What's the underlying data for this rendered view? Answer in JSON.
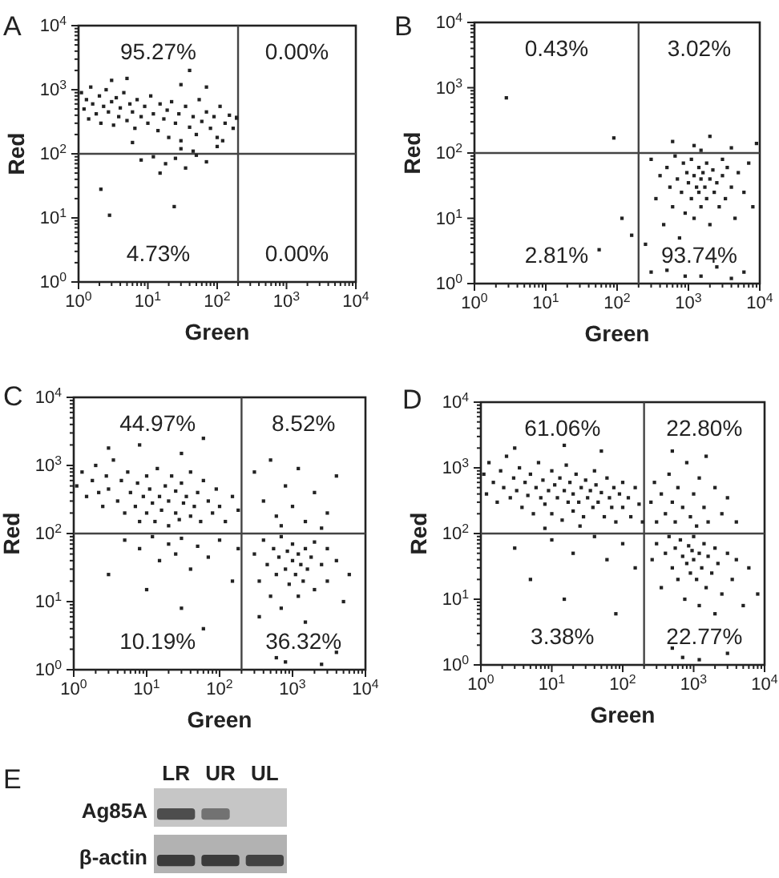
{
  "chart_data": [
    {
      "type": "scatter",
      "title": "A",
      "xlabel": "Green",
      "ylabel": "Red",
      "log": "xy",
      "xlim": [
        1,
        10000
      ],
      "ylim": [
        1,
        10000
      ],
      "color": "#222222",
      "marker": "square",
      "xticks": [
        {
          "value": 1,
          "label": "10$^{0}$"
        },
        {
          "value": 2,
          "label": null
        },
        {
          "value": 3,
          "label": null
        },
        {
          "value": 4,
          "label": null
        },
        {
          "value": 5,
          "label": null
        },
        {
          "value": 6,
          "label": null
        },
        {
          "value": 7,
          "label": null
        },
        {
          "value": 8,
          "label": null
        },
        {
          "value": 9,
          "label": null
        },
        {
          "value": 10,
          "label": "10$^{1}$"
        },
        {
          "value": 20,
          "label": null
        },
        {
          "value": 30,
          "label": null
        },
        {
          "value": 40,
          "label": null
        },
        {
          "value": 50,
          "label": null
        },
        {
          "value": 60,
          "label": null
        },
        {
          "value": 70,
          "label": null
        },
        {
          "value": 80,
          "label": null
        },
        {
          "value": 90,
          "label": null
        },
        {
          "value": 100,
          "label": "10$^{2}$"
        },
        {
          "value": 200,
          "label": null
        },
        {
          "value": 300,
          "label": null
        },
        {
          "value": 400,
          "label": null
        },
        {
          "value": 500,
          "label": null
        },
        {
          "value": 600,
          "label": null
        },
        {
          "value": 700,
          "label": null
        },
        {
          "value": 800,
          "label": null
        },
        {
          "value": 900,
          "label": null
        },
        {
          "value": 1000,
          "label": "10$^{3}$"
        },
        {
          "value": 2000,
          "label": null
        },
        {
          "value": 3000,
          "label": null
        },
        {
          "value": 4000,
          "label": null
        },
        {
          "value": 5000,
          "label": null
        },
        {
          "value": 6000,
          "label": null
        },
        {
          "value": 7000,
          "label": null
        },
        {
          "value": 8000,
          "label": null
        },
        {
          "value": 9000,
          "label": null
        },
        {
          "value": 10000,
          "label": "10$^{4}$"
        }
      ],
      "yticks": [
        {
          "value": 1,
          "label": "10$^{0}$"
        },
        {
          "value": 2,
          "label": null
        },
        {
          "value": 3,
          "label": null
        },
        {
          "value": 4,
          "label": null
        },
        {
          "value": 5,
          "label": null
        },
        {
          "value": 6,
          "label": null
        },
        {
          "value": 7,
          "label": null
        },
        {
          "value": 8,
          "label": null
        },
        {
          "value": 9,
          "label": null
        },
        {
          "value": 10,
          "label": "10$^{1}$"
        },
        {
          "value": 20,
          "label": null
        },
        {
          "value": 30,
          "label": null
        },
        {
          "value": 40,
          "label": null
        },
        {
          "value": 50,
          "label": null
        },
        {
          "value": 60,
          "label": null
        },
        {
          "value": 70,
          "label": null
        },
        {
          "value": 80,
          "label": null
        },
        {
          "value": 90,
          "label": null
        },
        {
          "value": 100,
          "label": "10$^{2}$"
        },
        {
          "value": 200,
          "label": null
        },
        {
          "value": 300,
          "label": null
        },
        {
          "value": 400,
          "label": null
        },
        {
          "value": 500,
          "label": null
        },
        {
          "value": 600,
          "label": null
        },
        {
          "value": 700,
          "label": null
        },
        {
          "value": 800,
          "label": null
        },
        {
          "value": 900,
          "label": null
        },
        {
          "value": 1000,
          "label": "10$^{3}$"
        },
        {
          "value": 2000,
          "label": null
        },
        {
          "value": 3000,
          "label": null
        },
        {
          "value": 4000,
          "label": null
        },
        {
          "value": 5000,
          "label": null
        },
        {
          "value": 6000,
          "label": null
        },
        {
          "value": 7000,
          "label": null
        },
        {
          "value": 8000,
          "label": null
        },
        {
          "value": 9000,
          "label": null
        },
        {
          "value": 10000,
          "label": "10$^{4}$"
        }
      ],
      "ref_lines": [
        {
          "axis": "x",
          "value": 200,
          "color": "#444444"
        },
        {
          "axis": "y",
          "value": 100,
          "color": "#444444"
        }
      ],
      "annotations": [
        "95.27%",
        "0.00%",
        "4.73%",
        "0.00%"
      ],
      "x": [
        1.1,
        1.2,
        1.3,
        1.4,
        1.5,
        1.6,
        1.8,
        2,
        2.1,
        2.3,
        2.5,
        2.7,
        3,
        3.2,
        3.5,
        3.8,
        4,
        4.5,
        5,
        5.5,
        6,
        6.5,
        7,
        8,
        9,
        10,
        11,
        12,
        14,
        15,
        17,
        19,
        20,
        22,
        25,
        28,
        30,
        35,
        40,
        45,
        50,
        55,
        60,
        70,
        80,
        90,
        100,
        110,
        130,
        150,
        170,
        190,
        8,
        12,
        18,
        25,
        35,
        50,
        70,
        15,
        6,
        30,
        45,
        100,
        120,
        5,
        30,
        70,
        3,
        40,
        2.8,
        24,
        2.1,
        190
      ],
      "values": [
        900,
        500,
        700,
        350,
        1100,
        600,
        420,
        800,
        300,
        550,
        1000,
        450,
        650,
        280,
        750,
        380,
        520,
        900,
        330,
        600,
        450,
        250,
        700,
        380,
        550,
        300,
        800,
        420,
        230,
        600,
        350,
        480,
        180,
        650,
        300,
        420,
        160,
        550,
        260,
        380,
        200,
        700,
        320,
        450,
        250,
        380,
        180,
        550,
        300,
        400,
        250,
        360,
        80,
        90,
        70,
        85,
        60,
        95,
        75,
        50,
        150,
        120,
        110,
        130,
        160,
        1500,
        1200,
        1100,
        1400,
        2000,
        11,
        15,
        28,
        370
      ]
    },
    {
      "type": "scatter",
      "title": "B",
      "xlabel": "Green",
      "ylabel": "Red",
      "log": "xy",
      "xlim": [
        1,
        10000
      ],
      "ylim": [
        1,
        10000
      ],
      "color": "#222222",
      "marker": "square",
      "xticks": [
        {
          "value": 1,
          "label": "10$^{0}$"
        },
        {
          "value": 2,
          "label": null
        },
        {
          "value": 3,
          "label": null
        },
        {
          "value": 4,
          "label": null
        },
        {
          "value": 5,
          "label": null
        },
        {
          "value": 6,
          "label": null
        },
        {
          "value": 7,
          "label": null
        },
        {
          "value": 8,
          "label": null
        },
        {
          "value": 9,
          "label": null
        },
        {
          "value": 10,
          "label": "10$^{1}$"
        },
        {
          "value": 20,
          "label": null
        },
        {
          "value": 30,
          "label": null
        },
        {
          "value": 40,
          "label": null
        },
        {
          "value": 50,
          "label": null
        },
        {
          "value": 60,
          "label": null
        },
        {
          "value": 70,
          "label": null
        },
        {
          "value": 80,
          "label": null
        },
        {
          "value": 90,
          "label": null
        },
        {
          "value": 100,
          "label": "10$^{2}$"
        },
        {
          "value": 200,
          "label": null
        },
        {
          "value": 300,
          "label": null
        },
        {
          "value": 400,
          "label": null
        },
        {
          "value": 500,
          "label": null
        },
        {
          "value": 600,
          "label": null
        },
        {
          "value": 700,
          "label": null
        },
        {
          "value": 800,
          "label": null
        },
        {
          "value": 900,
          "label": null
        },
        {
          "value": 1000,
          "label": "10$^{3}$"
        },
        {
          "value": 2000,
          "label": null
        },
        {
          "value": 3000,
          "label": null
        },
        {
          "value": 4000,
          "label": null
        },
        {
          "value": 5000,
          "label": null
        },
        {
          "value": 6000,
          "label": null
        },
        {
          "value": 7000,
          "label": null
        },
        {
          "value": 8000,
          "label": null
        },
        {
          "value": 9000,
          "label": null
        },
        {
          "value": 10000,
          "label": "10$^{4}$"
        }
      ],
      "yticks": [
        {
          "value": 1,
          "label": "10$^{0}$"
        },
        {
          "value": 2,
          "label": null
        },
        {
          "value": 3,
          "label": null
        },
        {
          "value": 4,
          "label": null
        },
        {
          "value": 5,
          "label": null
        },
        {
          "value": 6,
          "label": null
        },
        {
          "value": 7,
          "label": null
        },
        {
          "value": 8,
          "label": null
        },
        {
          "value": 9,
          "label": null
        },
        {
          "value": 10,
          "label": "10$^{1}$"
        },
        {
          "value": 20,
          "label": null
        },
        {
          "value": 30,
          "label": null
        },
        {
          "value": 40,
          "label": null
        },
        {
          "value": 50,
          "label": null
        },
        {
          "value": 60,
          "label": null
        },
        {
          "value": 70,
          "label": null
        },
        {
          "value": 80,
          "label": null
        },
        {
          "value": 90,
          "label": null
        },
        {
          "value": 100,
          "label": "10$^{2}$"
        },
        {
          "value": 200,
          "label": null
        },
        {
          "value": 300,
          "label": null
        },
        {
          "value": 400,
          "label": null
        },
        {
          "value": 500,
          "label": null
        },
        {
          "value": 600,
          "label": null
        },
        {
          "value": 700,
          "label": null
        },
        {
          "value": 800,
          "label": null
        },
        {
          "value": 900,
          "label": null
        },
        {
          "value": 1000,
          "label": "10$^{3}$"
        },
        {
          "value": 2000,
          "label": null
        },
        {
          "value": 3000,
          "label": null
        },
        {
          "value": 4000,
          "label": null
        },
        {
          "value": 5000,
          "label": null
        },
        {
          "value": 6000,
          "label": null
        },
        {
          "value": 7000,
          "label": null
        },
        {
          "value": 8000,
          "label": null
        },
        {
          "value": 9000,
          "label": null
        },
        {
          "value": 10000,
          "label": "10$^{4}$"
        }
      ],
      "ref_lines": [
        {
          "axis": "x",
          "value": 200,
          "color": "#444444"
        },
        {
          "axis": "y",
          "value": 100,
          "color": "#444444"
        }
      ],
      "annotations": [
        "0.43%",
        "3.02%",
        "2.81%",
        "93.74%"
      ],
      "x": [
        300,
        350,
        400,
        450,
        500,
        550,
        600,
        650,
        700,
        750,
        800,
        850,
        900,
        950,
        1000,
        1100,
        1100,
        1200,
        1200,
        1300,
        1400,
        1400,
        1500,
        1500,
        1600,
        1700,
        1800,
        1800,
        2000,
        2000,
        2200,
        2300,
        2500,
        2700,
        3000,
        3000,
        3300,
        3500,
        4000,
        4500,
        5000,
        6000,
        7000,
        8000,
        300,
        500,
        900,
        1500,
        2500,
        4000,
        6000,
        600,
        1200,
        2000,
        4000,
        9000,
        1500,
        2.8,
        90,
        117,
        160,
        56,
        250
      ],
      "values": [
        80,
        20,
        45,
        8,
        60,
        30,
        15,
        90,
        40,
        5,
        25,
        70,
        12,
        50,
        35,
        20,
        80,
        45,
        10,
        30,
        60,
        25,
        40,
        15,
        50,
        30,
        70,
        20,
        40,
        8,
        55,
        25,
        35,
        15,
        45,
        80,
        20,
        60,
        30,
        10,
        50,
        25,
        70,
        15,
        1.5,
        1.6,
        1.3,
        1.3,
        1.8,
        1.2,
        1.5,
        150,
        130,
        180,
        120,
        140,
        110,
        700,
        170,
        10,
        5.5,
        3.3,
        4
      ]
    },
    {
      "type": "scatter",
      "title": "C",
      "xlabel": "Green",
      "ylabel": "Red",
      "log": "xy",
      "xlim": [
        1,
        10000
      ],
      "ylim": [
        1,
        10000
      ],
      "color": "#222222",
      "marker": "square",
      "xticks": [
        {
          "value": 1,
          "label": "10$^{0}$"
        },
        {
          "value": 2,
          "label": null
        },
        {
          "value": 3,
          "label": null
        },
        {
          "value": 4,
          "label": null
        },
        {
          "value": 5,
          "label": null
        },
        {
          "value": 6,
          "label": null
        },
        {
          "value": 7,
          "label": null
        },
        {
          "value": 8,
          "label": null
        },
        {
          "value": 9,
          "label": null
        },
        {
          "value": 10,
          "label": "10$^{1}$"
        },
        {
          "value": 20,
          "label": null
        },
        {
          "value": 30,
          "label": null
        },
        {
          "value": 40,
          "label": null
        },
        {
          "value": 50,
          "label": null
        },
        {
          "value": 60,
          "label": null
        },
        {
          "value": 70,
          "label": null
        },
        {
          "value": 80,
          "label": null
        },
        {
          "value": 90,
          "label": null
        },
        {
          "value": 100,
          "label": "10$^{2}$"
        },
        {
          "value": 200,
          "label": null
        },
        {
          "value": 300,
          "label": null
        },
        {
          "value": 400,
          "label": null
        },
        {
          "value": 500,
          "label": null
        },
        {
          "value": 600,
          "label": null
        },
        {
          "value": 700,
          "label": null
        },
        {
          "value": 800,
          "label": null
        },
        {
          "value": 900,
          "label": null
        },
        {
          "value": 1000,
          "label": "10$^{3}$"
        },
        {
          "value": 2000,
          "label": null
        },
        {
          "value": 3000,
          "label": null
        },
        {
          "value": 4000,
          "label": null
        },
        {
          "value": 5000,
          "label": null
        },
        {
          "value": 6000,
          "label": null
        },
        {
          "value": 7000,
          "label": null
        },
        {
          "value": 8000,
          "label": null
        },
        {
          "value": 9000,
          "label": null
        },
        {
          "value": 10000,
          "label": "10$^{4}$"
        }
      ],
      "yticks": [
        {
          "value": 1,
          "label": "10$^{0}$"
        },
        {
          "value": 2,
          "label": null
        },
        {
          "value": 3,
          "label": null
        },
        {
          "value": 4,
          "label": null
        },
        {
          "value": 5,
          "label": null
        },
        {
          "value": 6,
          "label": null
        },
        {
          "value": 7,
          "label": null
        },
        {
          "value": 8,
          "label": null
        },
        {
          "value": 9,
          "label": null
        },
        {
          "value": 10,
          "label": "10$^{1}$"
        },
        {
          "value": 20,
          "label": null
        },
        {
          "value": 30,
          "label": null
        },
        {
          "value": 40,
          "label": null
        },
        {
          "value": 50,
          "label": null
        },
        {
          "value": 60,
          "label": null
        },
        {
          "value": 70,
          "label": null
        },
        {
          "value": 80,
          "label": null
        },
        {
          "value": 90,
          "label": null
        },
        {
          "value": 100,
          "label": "10$^{2}$"
        },
        {
          "value": 200,
          "label": null
        },
        {
          "value": 300,
          "label": null
        },
        {
          "value": 400,
          "label": null
        },
        {
          "value": 500,
          "label": null
        },
        {
          "value": 600,
          "label": null
        },
        {
          "value": 700,
          "label": null
        },
        {
          "value": 800,
          "label": null
        },
        {
          "value": 900,
          "label": null
        },
        {
          "value": 1000,
          "label": "10$^{3}$"
        },
        {
          "value": 2000,
          "label": null
        },
        {
          "value": 3000,
          "label": null
        },
        {
          "value": 4000,
          "label": null
        },
        {
          "value": 5000,
          "label": null
        },
        {
          "value": 6000,
          "label": null
        },
        {
          "value": 7000,
          "label": null
        },
        {
          "value": 8000,
          "label": null
        },
        {
          "value": 9000,
          "label": null
        },
        {
          "value": 10000,
          "label": "10$^{4}$"
        }
      ],
      "ref_lines": [
        {
          "axis": "x",
          "value": 200,
          "color": "#444444"
        },
        {
          "axis": "y",
          "value": 100,
          "color": "#444444"
        }
      ],
      "annotations": [
        "44.97%",
        "8.52%",
        "10.19%",
        "36.32%"
      ],
      "x": [
        1.1,
        1.3,
        1.5,
        1.8,
        2,
        2.2,
        2.5,
        2.8,
        3,
        3.5,
        4,
        4.5,
        5,
        5.5,
        6,
        7,
        7.5,
        8,
        9,
        10,
        10,
        11,
        12,
        13,
        14,
        15,
        16,
        18,
        20,
        20,
        22,
        25,
        25,
        28,
        30,
        32,
        35,
        40,
        40,
        45,
        50,
        55,
        60,
        70,
        80,
        90,
        100,
        120,
        150,
        180,
        8,
        30,
        3,
        60,
        5,
        8,
        12,
        15,
        20,
        25,
        30,
        40,
        50,
        70,
        100,
        150,
        10,
        30,
        3,
        60,
        180,
        300,
        400,
        500,
        600,
        800,
        1000,
        1200,
        1500,
        2000,
        3000,
        4000,
        2500,
        700,
        300,
        350,
        400,
        450,
        500,
        550,
        600,
        650,
        700,
        700,
        800,
        850,
        900,
        1000,
        1000,
        1100,
        1200,
        1200,
        1300,
        1400,
        1500,
        1600,
        1800,
        2000,
        2000,
        2500,
        3000,
        3000,
        4000,
        5000,
        6000,
        350,
        800,
        1500,
        2500,
        600,
        4000
      ],
      "values": [
        500,
        800,
        350,
        600,
        1000,
        400,
        250,
        700,
        450,
        1200,
        300,
        600,
        200,
        800,
        400,
        250,
        550,
        150,
        350,
        700,
        200,
        450,
        280,
        150,
        900,
        350,
        220,
        500,
        130,
        300,
        700,
        200,
        420,
        160,
        550,
        280,
        350,
        180,
        800,
        250,
        400,
        150,
        600,
        300,
        200,
        450,
        250,
        150,
        350,
        220,
        2000,
        1500,
        1800,
        2500,
        80,
        60,
        90,
        40,
        70,
        50,
        85,
        30,
        65,
        45,
        80,
        20,
        15,
        8,
        25,
        4,
        60,
        800,
        300,
        1200,
        180,
        500,
        250,
        900,
        150,
        400,
        200,
        700,
        120,
        130,
        50,
        20,
        80,
        35,
        12,
        60,
        25,
        45,
        90,
        8,
        30,
        55,
        18,
        40,
        70,
        25,
        12,
        50,
        35,
        20,
        60,
        30,
        45,
        15,
        75,
        35,
        20,
        60,
        40,
        10,
        25,
        6,
        1.3,
        5,
        1.2,
        1.5,
        1.8
      ]
    },
    {
      "type": "scatter",
      "title": "D",
      "xlabel": "Green",
      "ylabel": "Red",
      "log": "xy",
      "xlim": [
        1,
        10000
      ],
      "ylim": [
        1,
        10000
      ],
      "color": "#222222",
      "marker": "square",
      "xticks": [
        {
          "value": 1,
          "label": "10$^{0}$"
        },
        {
          "value": 2,
          "label": null
        },
        {
          "value": 3,
          "label": null
        },
        {
          "value": 4,
          "label": null
        },
        {
          "value": 5,
          "label": null
        },
        {
          "value": 6,
          "label": null
        },
        {
          "value": 7,
          "label": null
        },
        {
          "value": 8,
          "label": null
        },
        {
          "value": 9,
          "label": null
        },
        {
          "value": 10,
          "label": "10$^{1}$"
        },
        {
          "value": 20,
          "label": null
        },
        {
          "value": 30,
          "label": null
        },
        {
          "value": 40,
          "label": null
        },
        {
          "value": 50,
          "label": null
        },
        {
          "value": 60,
          "label": null
        },
        {
          "value": 70,
          "label": null
        },
        {
          "value": 80,
          "label": null
        },
        {
          "value": 90,
          "label": null
        },
        {
          "value": 100,
          "label": "10$^{2}$"
        },
        {
          "value": 200,
          "label": null
        },
        {
          "value": 300,
          "label": null
        },
        {
          "value": 400,
          "label": null
        },
        {
          "value": 500,
          "label": null
        },
        {
          "value": 600,
          "label": null
        },
        {
          "value": 700,
          "label": null
        },
        {
          "value": 800,
          "label": null
        },
        {
          "value": 900,
          "label": null
        },
        {
          "value": 1000,
          "label": "10$^{3}$"
        },
        {
          "value": 2000,
          "label": null
        },
        {
          "value": 3000,
          "label": null
        },
        {
          "value": 4000,
          "label": null
        },
        {
          "value": 5000,
          "label": null
        },
        {
          "value": 6000,
          "label": null
        },
        {
          "value": 7000,
          "label": null
        },
        {
          "value": 8000,
          "label": null
        },
        {
          "value": 9000,
          "label": null
        },
        {
          "value": 10000,
          "label": "10$^{4}$"
        }
      ],
      "yticks": [
        {
          "value": 1,
          "label": "10$^{0}$"
        },
        {
          "value": 2,
          "label": null
        },
        {
          "value": 3,
          "label": null
        },
        {
          "value": 4,
          "label": null
        },
        {
          "value": 5,
          "label": null
        },
        {
          "value": 6,
          "label": null
        },
        {
          "value": 7,
          "label": null
        },
        {
          "value": 8,
          "label": null
        },
        {
          "value": 9,
          "label": null
        },
        {
          "value": 10,
          "label": "10$^{1}$"
        },
        {
          "value": 20,
          "label": null
        },
        {
          "value": 30,
          "label": null
        },
        {
          "value": 40,
          "label": null
        },
        {
          "value": 50,
          "label": null
        },
        {
          "value": 60,
          "label": null
        },
        {
          "value": 70,
          "label": null
        },
        {
          "value": 80,
          "label": null
        },
        {
          "value": 90,
          "label": null
        },
        {
          "value": 100,
          "label": "10$^{2}$"
        },
        {
          "value": 200,
          "label": null
        },
        {
          "value": 300,
          "label": null
        },
        {
          "value": 400,
          "label": null
        },
        {
          "value": 500,
          "label": null
        },
        {
          "value": 600,
          "label": null
        },
        {
          "value": 700,
          "label": null
        },
        {
          "value": 800,
          "label": null
        },
        {
          "value": 900,
          "label": null
        },
        {
          "value": 1000,
          "label": "10$^{3}$"
        },
        {
          "value": 2000,
          "label": null
        },
        {
          "value": 3000,
          "label": null
        },
        {
          "value": 4000,
          "label": null
        },
        {
          "value": 5000,
          "label": null
        },
        {
          "value": 6000,
          "label": null
        },
        {
          "value": 7000,
          "label": null
        },
        {
          "value": 8000,
          "label": null
        },
        {
          "value": 9000,
          "label": null
        },
        {
          "value": 10000,
          "label": "10$^{4}$"
        }
      ],
      "ref_lines": [
        {
          "axis": "x",
          "value": 200,
          "color": "#444444"
        },
        {
          "axis": "y",
          "value": 100,
          "color": "#444444"
        }
      ],
      "annotations": [
        "61.06%",
        "22.80%",
        "3.38%",
        "22.77%"
      ],
      "x": [
        1.1,
        1.2,
        1.3,
        1.5,
        1.7,
        1.9,
        2.1,
        2.3,
        2.6,
        2.9,
        3.2,
        3.5,
        3.8,
        4.2,
        4.6,
        5,
        5.5,
        6,
        6.5,
        7,
        7.5,
        8,
        9,
        10,
        10,
        11,
        12,
        13,
        14,
        15,
        16,
        17,
        18,
        20,
        20,
        22,
        24,
        26,
        28,
        30,
        32,
        35,
        38,
        40,
        42,
        45,
        50,
        55,
        60,
        65,
        70,
        75,
        80,
        90,
        100,
        100,
        120,
        130,
        150,
        170,
        190,
        3,
        15,
        50,
        8,
        25,
        250,
        280,
        300,
        350,
        400,
        450,
        500,
        550,
        600,
        700,
        800,
        900,
        1000,
        1100,
        1200,
        1400,
        1600,
        2000,
        2500,
        3000,
        4000,
        500,
        1500,
        3,
        10,
        20,
        40,
        60,
        100,
        150,
        15,
        80,
        5,
        260,
        300,
        350,
        400,
        450,
        500,
        550,
        600,
        650,
        700,
        750,
        800,
        850,
        900,
        950,
        1000,
        1000,
        1100,
        1200,
        1200,
        1300,
        1400,
        1500,
        1600,
        1800,
        2000,
        2200,
        2500,
        3000,
        3500,
        4000,
        5000,
        6000,
        700,
        1200,
        2000,
        3000,
        500,
        8000
      ],
      "values": [
        800,
        400,
        1200,
        600,
        300,
        900,
        500,
        1500,
        350,
        700,
        450,
        1000,
        250,
        600,
        380,
        800,
        200,
        500,
        1200,
        350,
        650,
        280,
        450,
        900,
        200,
        550,
        350,
        700,
        160,
        450,
        1100,
        300,
        600,
        400,
        220,
        800,
        300,
        500,
        180,
        650,
        350,
        450,
        250,
        900,
        550,
        300,
        420,
        180,
        700,
        350,
        250,
        500,
        150,
        400,
        600,
        250,
        350,
        180,
        500,
        280,
        150,
        2000,
        2200,
        1800,
        120,
        130,
        300,
        600,
        150,
        400,
        200,
        800,
        300,
        150,
        500,
        250,
        1200,
        180,
        400,
        130,
        700,
        250,
        150,
        500,
        200,
        350,
        150,
        1800,
        1500,
        60,
        80,
        50,
        90,
        40,
        70,
        30,
        10,
        6,
        20,
        40,
        70,
        15,
        50,
        90,
        30,
        60,
        20,
        80,
        45,
        10,
        35,
        65,
        25,
        55,
        40,
        90,
        20,
        50,
        8,
        30,
        70,
        15,
        45,
        25,
        60,
        35,
        12,
        50,
        20,
        40,
        8,
        30,
        1.3,
        1.2,
        6,
        1.5,
        1.8,
        12
      ]
    },
    {
      "type": "other",
      "title": "E",
      "categories": [
        "LR",
        "UR",
        "UL"
      ],
      "annotations": [
        "Ag85A",
        "β-actin"
      ]
    }
  ]
}
